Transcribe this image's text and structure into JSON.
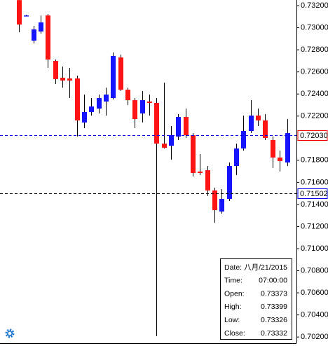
{
  "chart_data": {
    "type": "candlestick",
    "up_color": "#1414ff",
    "down_color": "#ff1414",
    "wick_color": "#000000",
    "open": [
      0.7325,
      0.73111,
      0.72883,
      0.72966,
      0.73111,
      0.72699,
      0.72547,
      0.72541,
      0.72541,
      0.72142,
      0.72237,
      0.72268,
      0.72332,
      0.72363,
      0.72731,
      0.72439,
      0.72344,
      0.72224,
      0.72332,
      0.72319,
      0.71951,
      0.71932,
      0.72015,
      0.72192,
      0.72027,
      0.71698,
      0.7171,
      0.71527,
      0.71336,
      0.7145,
      0.71748,
      0.71907,
      0.72065,
      0.72205,
      0.72161,
      0.71983,
      0.71825,
      0.7178
    ],
    "high": [
      0.7326,
      0.73118,
      0.73016,
      0.73111,
      0.73124,
      0.72712,
      0.72649,
      0.72636,
      0.72566,
      0.72395,
      0.72363,
      0.72395,
      0.72458,
      0.72776,
      0.72757,
      0.72458,
      0.72363,
      0.72427,
      0.72395,
      0.72363,
      0.72503,
      0.7211,
      0.72218,
      0.72268,
      0.72046,
      0.71856,
      0.71748,
      0.71552,
      0.71539,
      0.7178,
      0.71951,
      0.72205,
      0.72344,
      0.72268,
      0.72218,
      0.72015,
      0.71888,
      0.72173
    ],
    "low": [
      0.72959,
      0.73104,
      0.72858,
      0.72947,
      0.72636,
      0.7249,
      0.72458,
      0.72363,
      0.72015,
      0.72091,
      0.72205,
      0.72224,
      0.72205,
      0.72351,
      0.72427,
      0.723,
      0.72091,
      0.72142,
      0.72205,
      0.70208,
      0.71907,
      0.71806,
      0.71983,
      0.72002,
      0.71653,
      0.71666,
      0.71476,
      0.71235,
      0.71317,
      0.71431,
      0.71666,
      0.71888,
      0.72046,
      0.7211,
      0.71983,
      0.71729,
      0.71698,
      0.71748
    ],
    "close": [
      0.73029,
      0.73111,
      0.72985,
      0.73048,
      0.72712,
      0.72535,
      0.72522,
      0.72522,
      0.72161,
      0.72237,
      0.72287,
      0.72363,
      0.72395,
      0.72744,
      0.72439,
      0.72344,
      0.72173,
      0.72344,
      0.72319,
      0.71951,
      0.71913,
      0.72027,
      0.72192,
      0.72027,
      0.71685,
      0.71685,
      0.71527,
      0.71349,
      0.7145,
      0.71748,
      0.71907,
      0.72065,
      0.72205,
      0.72161,
      0.72002,
      0.71825,
      0.71793,
      0.72046
    ],
    "ylim": [
      0.70144,
      0.73251
    ],
    "yticks": [
      {
        "value": 0.732,
        "label": "0.73200"
      },
      {
        "value": 0.73,
        "label": "0.73000"
      },
      {
        "value": 0.728,
        "label": "0.72800"
      },
      {
        "value": 0.726,
        "label": "0.72600"
      },
      {
        "value": 0.724,
        "label": "0.72400"
      },
      {
        "value": 0.722,
        "label": "0.72200"
      },
      {
        "value": 0.718,
        "label": "0.71800"
      },
      {
        "value": 0.716,
        "label": "0.71600"
      },
      {
        "value": 0.714,
        "label": "0.71400"
      },
      {
        "value": 0.712,
        "label": "0.71200"
      },
      {
        "value": 0.71,
        "label": "0.71000"
      },
      {
        "value": 0.708,
        "label": "0.70800"
      },
      {
        "value": 0.706,
        "label": "0.70600"
      },
      {
        "value": 0.704,
        "label": "0.70400"
      },
      {
        "value": 0.702,
        "label": "0.70200"
      }
    ],
    "price_lines": [
      {
        "value": 0.7203,
        "label": "0.72030",
        "color": "#0000ee",
        "box_color": "#ee0000"
      },
      {
        "value": 0.71502,
        "label": "0.71502",
        "color": "#000000",
        "box_color": "#0000ee"
      }
    ],
    "grid": false,
    "tooltip": [
      {
        "label": "Date:",
        "value": "八月/21/2015"
      },
      {
        "label": "Time:",
        "value": "07:00:00"
      },
      {
        "label": "Open:",
        "value": "0.73373"
      },
      {
        "label": "High:",
        "value": "0.73399"
      },
      {
        "label": "Low:",
        "value": "0.73326"
      },
      {
        "label": "Close:",
        "value": "0.73332"
      }
    ]
  }
}
